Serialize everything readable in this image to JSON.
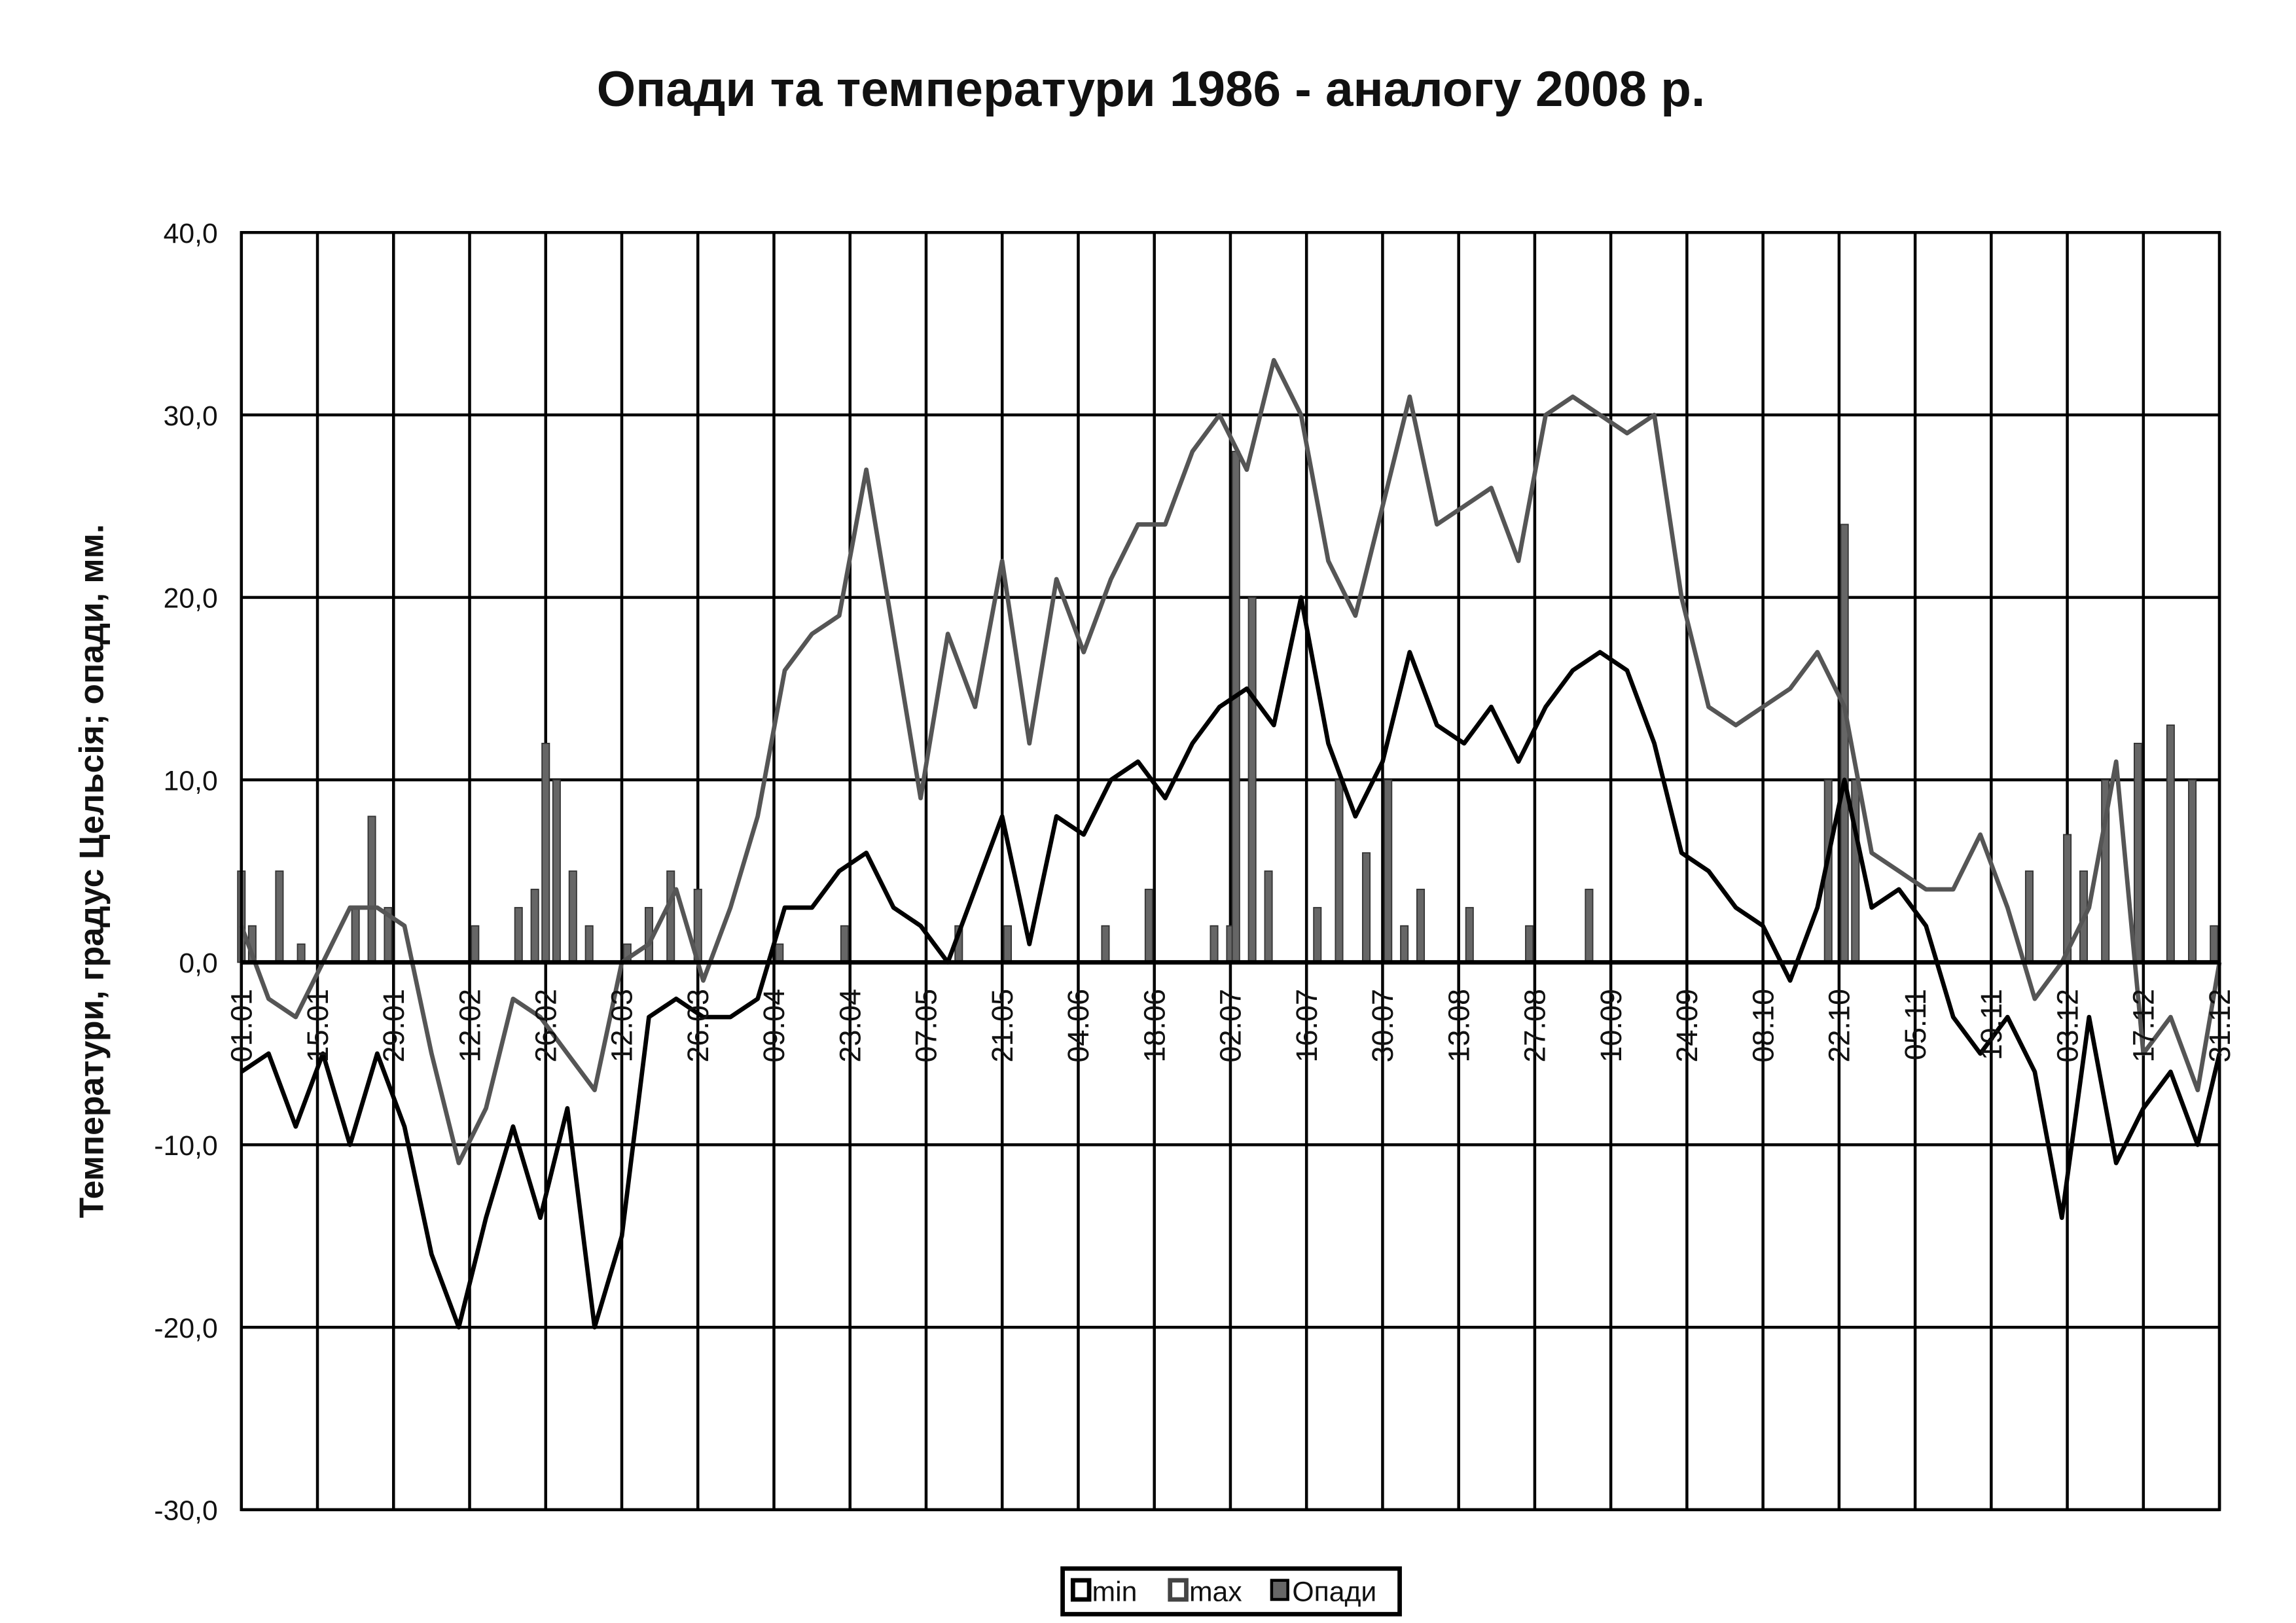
{
  "chart_data": {
    "type": "line",
    "title": "Опади та температури 1986 - аналогу 2008 р.",
    "xlabel": "",
    "ylabel": "Температури, градус Цельсія; опади, мм.",
    "ylim": [
      -30,
      40
    ],
    "y_ticks": [
      "40,0",
      "30,0",
      "20,0",
      "10,0",
      "0,0",
      "-10,0",
      "-20,0",
      "-30,0"
    ],
    "y_tick_values": [
      40,
      30,
      20,
      10,
      0,
      -10,
      -20,
      -30
    ],
    "x_ticks": [
      "01.01",
      "15.01",
      "29.01",
      "12.02",
      "26.02",
      "12.03",
      "26.03",
      "09.04",
      "23.04",
      "07.05",
      "21.05",
      "04.06",
      "18.06",
      "02.07",
      "16.07",
      "30.07",
      "13.08",
      "27.08",
      "10.09",
      "24.09",
      "08.10",
      "22.10",
      "05.11",
      "19.11",
      "03.12",
      "17.12",
      "31.12"
    ],
    "grid": true,
    "legend_position": "bottom",
    "x": [
      "01.01",
      "06.01",
      "11.01",
      "16.01",
      "21.01",
      "26.01",
      "31.01",
      "05.02",
      "10.02",
      "15.02",
      "20.02",
      "25.02",
      "02.03",
      "07.03",
      "12.03",
      "17.03",
      "22.03",
      "27.03",
      "01.04",
      "06.04",
      "11.04",
      "16.04",
      "21.04",
      "26.04",
      "01.05",
      "06.05",
      "11.05",
      "16.05",
      "21.05",
      "26.05",
      "31.05",
      "05.06",
      "10.06",
      "15.06",
      "20.06",
      "25.06",
      "30.06",
      "05.07",
      "10.07",
      "15.07",
      "20.07",
      "25.07",
      "30.07",
      "04.08",
      "09.08",
      "14.08",
      "19.08",
      "24.08",
      "29.08",
      "03.09",
      "08.09",
      "13.09",
      "18.09",
      "23.09",
      "28.09",
      "03.10",
      "08.10",
      "13.10",
      "18.10",
      "23.10",
      "28.10",
      "02.11",
      "07.11",
      "12.11",
      "17.11",
      "22.11",
      "27.11",
      "02.12",
      "07.12",
      "12.12",
      "17.12",
      "22.12",
      "27.12",
      "31.12"
    ],
    "series": [
      {
        "name": "min",
        "kind": "line",
        "color": "#000000",
        "values": [
          -6,
          -5,
          -9,
          -5,
          -10,
          -5,
          -9,
          -16,
          -20,
          -14,
          -9,
          -14,
          -8,
          -20,
          -15,
          -3,
          -2,
          -3,
          -3,
          -2,
          3,
          3,
          5,
          6,
          3,
          2,
          0,
          4,
          8,
          1,
          8,
          7,
          10,
          11,
          9,
          12,
          14,
          15,
          13,
          20,
          12,
          8,
          11,
          17,
          13,
          12,
          14,
          11,
          14,
          16,
          17,
          16,
          12,
          6,
          5,
          3,
          2,
          -1,
          3,
          10,
          3,
          4,
          2,
          -3,
          -5,
          -3,
          -6,
          -14,
          -3,
          -11,
          -8,
          -6,
          -10,
          -5
        ]
      },
      {
        "name": "max",
        "kind": "line",
        "color": "#555555",
        "values": [
          2,
          -2,
          -3,
          0,
          3,
          3,
          2,
          -5,
          -11,
          -8,
          -2,
          -3,
          -5,
          -7,
          0,
          1,
          4,
          -1,
          3,
          8,
          16,
          18,
          19,
          27,
          18,
          9,
          18,
          14,
          22,
          12,
          21,
          17,
          21,
          24,
          24,
          28,
          30,
          27,
          33,
          30,
          22,
          19,
          25,
          31,
          24,
          25,
          26,
          22,
          30,
          31,
          30,
          29,
          30,
          20,
          14,
          13,
          14,
          15,
          17,
          14,
          6,
          5,
          4,
          4,
          7,
          3,
          -2,
          0,
          3,
          11,
          -5,
          -3,
          -7,
          0
        ]
      },
      {
        "name": "Опади",
        "kind": "bar",
        "color": "#666666",
        "points": [
          [
            "01.01",
            5
          ],
          [
            "03.01",
            2
          ],
          [
            "08.01",
            5
          ],
          [
            "12.01",
            1
          ],
          [
            "22.01",
            3
          ],
          [
            "25.01",
            8
          ],
          [
            "28.01",
            3
          ],
          [
            "13.02",
            2
          ],
          [
            "21.02",
            3
          ],
          [
            "24.02",
            4
          ],
          [
            "26.02",
            12
          ],
          [
            "28.02",
            10
          ],
          [
            "03.03",
            5
          ],
          [
            "06.03",
            2
          ],
          [
            "13.03",
            1
          ],
          [
            "17.03",
            3
          ],
          [
            "21.03",
            5
          ],
          [
            "26.03",
            4
          ],
          [
            "10.04",
            1
          ],
          [
            "22.04",
            2
          ],
          [
            "13.05",
            2
          ],
          [
            "22.05",
            2
          ],
          [
            "09.06",
            2
          ],
          [
            "17.06",
            4
          ],
          [
            "29.06",
            2
          ],
          [
            "02.07",
            2
          ],
          [
            "03.07",
            28
          ],
          [
            "06.07",
            20
          ],
          [
            "09.07",
            5
          ],
          [
            "18.07",
            3
          ],
          [
            "22.07",
            10
          ],
          [
            "27.07",
            6
          ],
          [
            "31.07",
            10
          ],
          [
            "03.08",
            2
          ],
          [
            "06.08",
            4
          ],
          [
            "15.08",
            3
          ],
          [
            "26.08",
            2
          ],
          [
            "06.09",
            4
          ],
          [
            "20.10",
            10
          ],
          [
            "23.10",
            24
          ],
          [
            "25.10",
            10
          ],
          [
            "26.11",
            5
          ],
          [
            "03.12",
            7
          ],
          [
            "06.12",
            5
          ],
          [
            "10.12",
            10
          ],
          [
            "16.12",
            12
          ],
          [
            "22.12",
            13
          ],
          [
            "26.12",
            10
          ],
          [
            "30.12",
            2
          ]
        ]
      }
    ]
  }
}
